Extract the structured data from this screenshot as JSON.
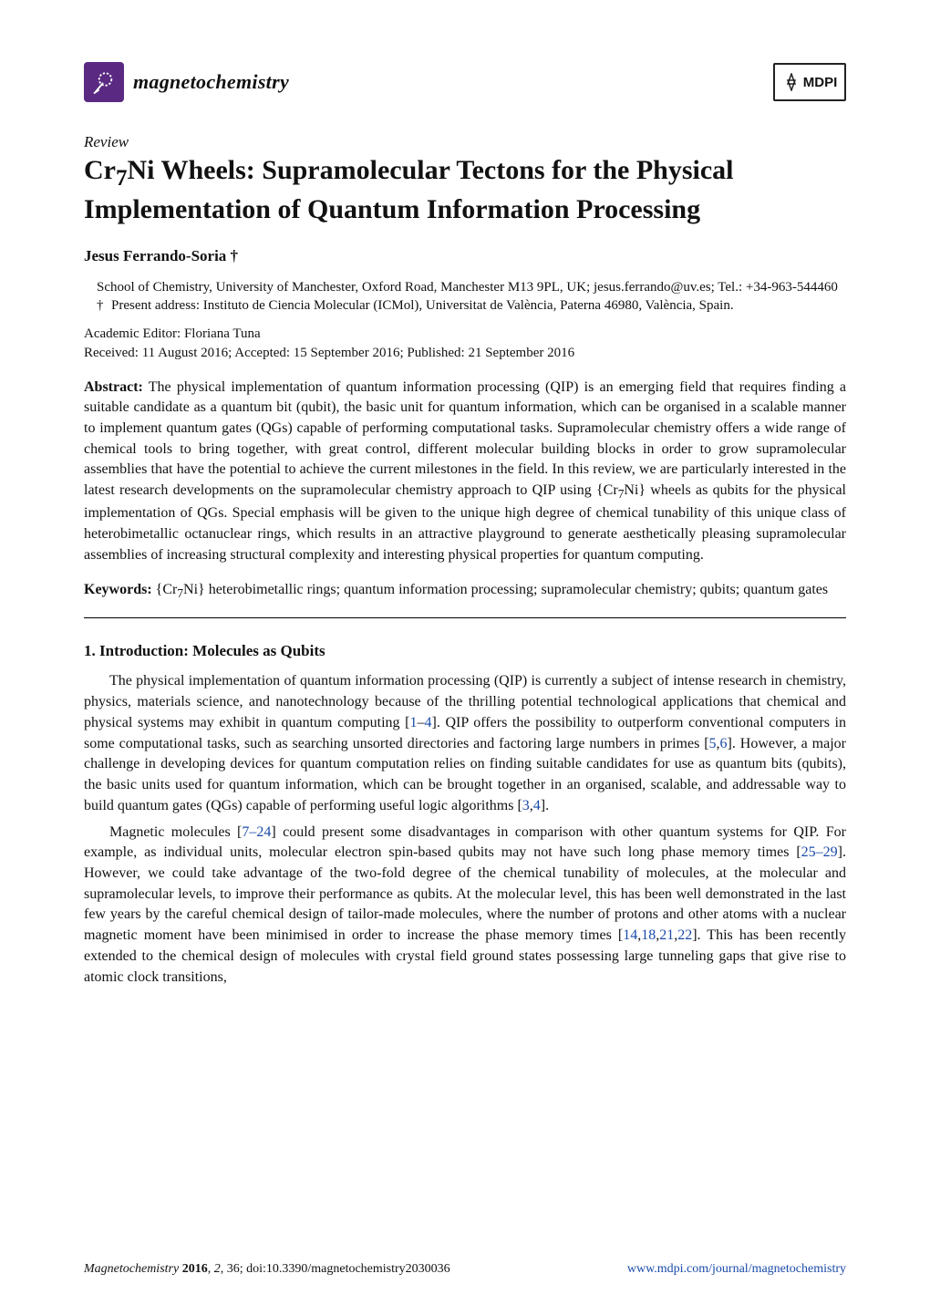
{
  "header": {
    "journal_name": "magnetochemistry",
    "publisher_logo_text": "MDPI",
    "logo_bg": "#5a2a82",
    "logo_stroke": "#ffffff"
  },
  "article": {
    "type": "Review",
    "title_html": "Cr<sub>7</sub>Ni Wheels: Supramolecular Tectons for the Physical Implementation of Quantum Information Processing",
    "author": "Jesus Ferrando-Soria †",
    "affiliation": "School of Chemistry, University of Manchester, Oxford Road, Manchester M13 9PL, UK; jesus.ferrando@uv.es; Tel.: +34-963-544460",
    "present_address": "Present address: Instituto de Ciencia Molecular (ICMol), Universitat de València, Paterna 46980, València, Spain.",
    "editor": "Academic Editor: Floriana Tuna",
    "dates": "Received: 11 August 2016; Accepted: 15 September 2016; Published: 21 September 2016",
    "abstract_label": "Abstract:",
    "abstract_html": "The physical implementation of quantum information processing (QIP) is an emerging field that requires finding a suitable candidate as a quantum bit (qubit), the basic unit for quantum information, which can be organised in a scalable manner to implement quantum gates (QGs) capable of performing computational tasks. Supramolecular chemistry offers a wide range of chemical tools to bring together, with great control, different molecular building blocks in order to grow supramolecular assemblies that have the potential to achieve the current milestones in the field. In this review, we are particularly interested in the latest research developments on the supramolecular chemistry approach to QIP using {Cr<sub>7</sub>Ni} wheels as qubits for the physical implementation of QGs. Special emphasis will be given to the unique high degree of chemical tunability of this unique class of heterobimetallic octanuclear rings, which results in an attractive playground to generate aesthetically pleasing supramolecular assemblies of increasing structural complexity and interesting physical properties for quantum computing.",
    "keywords_label": "Keywords:",
    "keywords_html": "{Cr<sub>7</sub>Ni} heterobimetallic rings; quantum information processing; supramolecular chemistry; qubits; quantum gates"
  },
  "section": {
    "heading": "1. Introduction: Molecules as Qubits",
    "para1_html": "The physical implementation of quantum information processing (QIP) is currently a subject of intense research in chemistry, physics, materials science, and nanotechnology because of the thrilling potential technological applications that chemical and physical systems may exhibit in quantum computing [1–4]. QIP offers the possibility to outperform conventional computers in some computational tasks, such as searching unsorted directories and factoring large numbers in primes [5,6]. However, a major challenge in developing devices for quantum computation relies on finding suitable candidates for use as quantum bits (qubits), the basic units used for quantum information, which can be brought together in an organised, scalable, and addressable way to build quantum gates (QGs) capable of performing useful logic algorithms [3,4].",
    "para2_html": "Magnetic molecules [7–24] could present some disadvantages in comparison with other quantum systems for QIP. For example, as individual units, molecular electron spin-based qubits may not have such long phase memory times [25–29]. However, we could take advantage of the two-fold degree of the chemical tunability of molecules, at the molecular and supramolecular levels, to improve their performance as qubits. At the molecular level, this has been well demonstrated in the last few years by the careful chemical design of tailor-made molecules, where the number of protons and other atoms with a nuclear magnetic moment have been minimised in order to increase the phase memory times [14,18,21,22]. This has been recently extended to the chemical design of molecules with crystal field ground states possessing large tunneling gaps that give rise to atomic clock transitions,"
  },
  "citations": {
    "c1": "1",
    "c4": "4",
    "c1_4": "1–4",
    "c5": "5",
    "c6": "6",
    "c3": "3",
    "c7_24": "7–24",
    "c25_29": "25–29",
    "c14": "14",
    "c18": "18",
    "c21": "21",
    "c22": "22"
  },
  "footer": {
    "left_italic": "Magnetochemistry",
    "left_rest": " 2016, 2, 36; doi:10.3390/magnetochemistry2030036",
    "right_url": "www.mdpi.com/journal/magnetochemistry"
  },
  "colors": {
    "text": "#111111",
    "link": "#1a4aa8",
    "rule": "#000000"
  }
}
